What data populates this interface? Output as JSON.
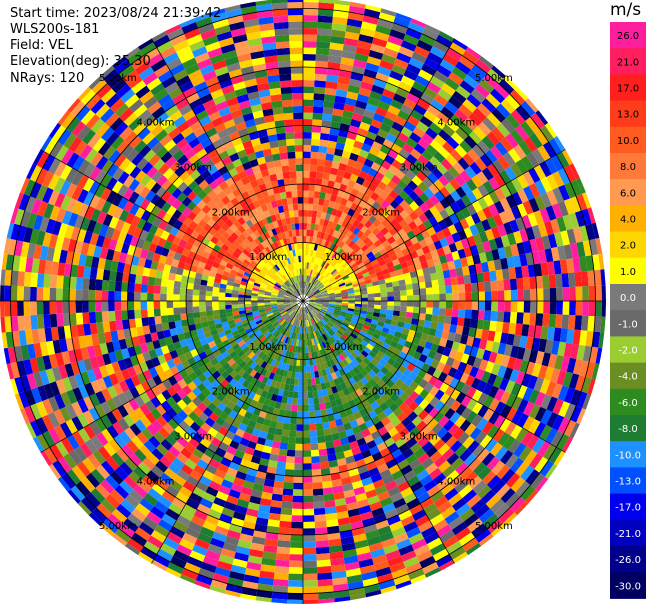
{
  "header": {
    "start_time": "Start time: 2023/08/24 21:39:42",
    "instrument": "WLS200s-181",
    "field": "Field: VEL",
    "elevation": "Elevation(deg): 35.30",
    "nrays": "NRays: 120"
  },
  "ppi": {
    "ring_labels": [
      "1.00km",
      "2.00km",
      "3.00km",
      "4.00km",
      "5.00km"
    ],
    "rings_km": [
      1,
      2,
      3,
      4,
      5
    ]
  },
  "colorbar": {
    "unit": "m/s",
    "ticks": [
      "26.0",
      "21.0",
      "17.0",
      "13.0",
      "10.0",
      "8.0",
      "6.0",
      "4.0",
      "2.0",
      "1.0",
      "0.0",
      "-1.0",
      "-2.0",
      "-4.0",
      "-6.0",
      "-8.0",
      "-10.0",
      "-13.0",
      "-17.0",
      "-21.0",
      "-26.0",
      "-30.0"
    ],
    "colors": [
      "#ff1f9e",
      "#ff1f5e",
      "#ff1f1f",
      "#ff3d1a",
      "#ff5a1f",
      "#ff7a3a",
      "#ff9a50",
      "#ffb000",
      "#ffd700",
      "#ffff00",
      "#7a7a7a",
      "#6a6a6a",
      "#9acd32",
      "#6b8e23",
      "#2e8b1f",
      "#1e7d32",
      "#1e90ff",
      "#0050ff",
      "#0000ee",
      "#0000c0",
      "#00008b",
      "#000060"
    ]
  },
  "chart_data": {
    "type": "heatmap",
    "title": "",
    "xlabel": "",
    "ylabel": "",
    "field": "VEL",
    "elevation_deg": 35.3,
    "nrays": 120,
    "range_km": [
      0,
      5.2
    ],
    "colorbar_range": [
      -30.0,
      26.0
    ]
  }
}
